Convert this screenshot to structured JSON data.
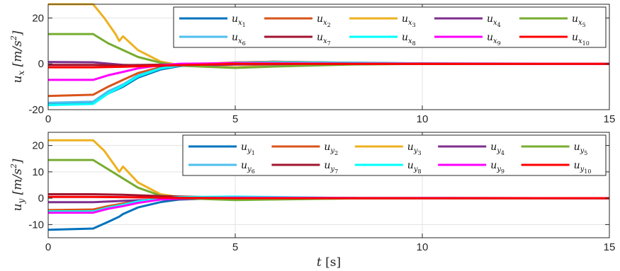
{
  "chart_data": [
    {
      "type": "line",
      "ylabel_var": "u",
      "ylabel_sub": "x",
      "ylabel_unit": "[m/s",
      "ylabel_unit_sup": "2",
      "ylabel_unit_end": "]",
      "xlim": [
        0,
        15
      ],
      "ylim": [
        -20,
        26
      ],
      "xticks": [
        0,
        5,
        10,
        15
      ],
      "yticks": [
        -20,
        0,
        20
      ],
      "grid": true,
      "legend_position": "top-right",
      "legend_columns": 5,
      "series": [
        {
          "name": "u",
          "sub": "x",
          "subsub": "1",
          "color": "#0072BD",
          "x": [
            0,
            1.2,
            1.6,
            2.0,
            2.4,
            3.0,
            3.5,
            5,
            6,
            8,
            10,
            15
          ],
          "y": [
            -17.5,
            -17,
            -13,
            -10,
            -6,
            -2.5,
            -1,
            0.6,
            0.9,
            0.5,
            0.2,
            0
          ]
        },
        {
          "name": "u",
          "sub": "x",
          "subsub": "2",
          "color": "#D95319",
          "x": [
            0,
            1.2,
            1.6,
            2.0,
            2.4,
            3.0,
            3.5,
            5,
            6,
            8,
            10,
            15
          ],
          "y": [
            -14,
            -13.5,
            -10,
            -7,
            -4,
            -1.5,
            -0.5,
            0.6,
            0.9,
            0.4,
            0.1,
            0
          ]
        },
        {
          "name": "u",
          "sub": "x",
          "subsub": "3",
          "color": "#EDB120",
          "x": [
            0,
            1.2,
            1.5,
            1.8,
            1.9,
            2.0,
            2.4,
            3.0,
            3.5,
            5,
            6,
            8,
            10,
            15
          ],
          "y": [
            26,
            26,
            20,
            13,
            10,
            12,
            6,
            1,
            -0.5,
            -1.5,
            -0.8,
            -0.2,
            0,
            0
          ]
        },
        {
          "name": "u",
          "sub": "x",
          "subsub": "4",
          "color": "#7E2F8E",
          "x": [
            0,
            1.2,
            2.0,
            3.0,
            5,
            8,
            15
          ],
          "y": [
            0.8,
            0.7,
            -0.5,
            -1,
            -0.3,
            0,
            0
          ]
        },
        {
          "name": "u",
          "sub": "x",
          "subsub": "5",
          "color": "#77AC30",
          "x": [
            0,
            1.2,
            1.6,
            2.0,
            2.4,
            3.0,
            3.5,
            5,
            6,
            8,
            10,
            15
          ],
          "y": [
            13,
            13,
            9,
            6,
            3,
            0.5,
            -0.8,
            -1.8,
            -1.2,
            -0.3,
            0,
            0
          ]
        },
        {
          "name": "u",
          "sub": "x",
          "subsub": "6",
          "color": "#4DBEEE",
          "x": [
            0,
            1.2,
            1.6,
            2.0,
            2.4,
            3.0,
            3.5,
            5,
            6,
            8,
            10,
            15
          ],
          "y": [
            -17,
            -16.5,
            -12,
            -9,
            -5,
            -2,
            -0.8,
            0.4,
            0.7,
            0.4,
            0.1,
            0
          ]
        },
        {
          "name": "u",
          "sub": "x",
          "subsub": "7",
          "color": "#A2142F",
          "x": [
            0,
            1.2,
            2.0,
            3.0,
            5,
            8,
            15
          ],
          "y": [
            -0.5,
            -0.5,
            -0.6,
            -0.4,
            0.1,
            0,
            0
          ]
        },
        {
          "name": "u",
          "sub": "x",
          "subsub": "8",
          "color": "#00FFFF",
          "x": [
            0,
            1.2,
            1.6,
            2.0,
            2.4,
            3.0,
            3.5,
            5,
            6,
            8,
            10,
            15
          ],
          "y": [
            -18,
            -17.5,
            -13,
            -9.5,
            -5.5,
            -2,
            -0.7,
            0.4,
            0.6,
            0.3,
            0.1,
            0
          ]
        },
        {
          "name": "u",
          "sub": "x",
          "subsub": "9",
          "color": "#FF00FF",
          "x": [
            0,
            1.2,
            1.6,
            2.0,
            2.4,
            3.0,
            3.5,
            5,
            8,
            15
          ],
          "y": [
            -7,
            -7,
            -5,
            -3.5,
            -2,
            -0.6,
            0,
            0.3,
            0.1,
            0
          ]
        },
        {
          "name": "u",
          "sub": "x",
          "subsub": "10",
          "color": "#FF0000",
          "x": [
            0,
            1.2,
            2.0,
            3.0,
            5,
            8,
            15
          ],
          "y": [
            -1.5,
            -1.5,
            -1.3,
            -0.8,
            0,
            0,
            0
          ]
        }
      ]
    },
    {
      "type": "line",
      "ylabel_var": "u",
      "ylabel_sub": "y",
      "ylabel_unit": "[m/s",
      "ylabel_unit_sup": "2",
      "ylabel_unit_end": "]",
      "xlabel_var": "t",
      "xlabel_unit": "[s]",
      "xlim": [
        0,
        15
      ],
      "ylim": [
        -15,
        25
      ],
      "xticks": [
        0,
        5,
        10,
        15
      ],
      "yticks": [
        -10,
        0,
        10,
        20
      ],
      "grid": true,
      "legend_position": "top-right",
      "legend_columns": 5,
      "series": [
        {
          "name": "u",
          "sub": "y",
          "subsub": "1",
          "color": "#0072BD",
          "x": [
            0,
            1.2,
            1.6,
            1.9,
            2.0,
            2.4,
            3.0,
            3.5,
            5,
            6,
            8,
            15
          ],
          "y": [
            -12,
            -11.5,
            -9,
            -7,
            -6,
            -3.5,
            -1.5,
            -0.5,
            0.2,
            0.2,
            0,
            0
          ]
        },
        {
          "name": "u",
          "sub": "y",
          "subsub": "2",
          "color": "#D95319",
          "x": [
            0,
            1.2,
            1.6,
            2.0,
            2.4,
            3.0,
            3.5,
            5,
            8,
            15
          ],
          "y": [
            -4.5,
            -4.3,
            -3,
            -2,
            -1,
            -0.2,
            0.2,
            0.3,
            0.1,
            0
          ]
        },
        {
          "name": "u",
          "sub": "y",
          "subsub": "3",
          "color": "#EDB120",
          "x": [
            0,
            1.2,
            1.5,
            1.8,
            1.9,
            2.0,
            2.4,
            3.0,
            3.5,
            5,
            6,
            8,
            10,
            15
          ],
          "y": [
            22,
            22,
            18,
            12,
            10,
            12,
            6,
            1.5,
            0.5,
            -0.3,
            -0.4,
            -0.1,
            0,
            0
          ]
        },
        {
          "name": "u",
          "sub": "y",
          "subsub": "4",
          "color": "#7E2F8E",
          "x": [
            0,
            1.2,
            2.0,
            3.0,
            5,
            8,
            15
          ],
          "y": [
            -1.5,
            -1.5,
            -1,
            -0.5,
            0,
            0,
            0
          ]
        },
        {
          "name": "u",
          "sub": "y",
          "subsub": "5",
          "color": "#77AC30",
          "x": [
            0,
            1.2,
            1.6,
            2.0,
            2.4,
            3.0,
            3.5,
            5,
            6,
            8,
            10,
            15
          ],
          "y": [
            14.5,
            14.5,
            11,
            7.5,
            4,
            1,
            0,
            -0.7,
            -0.5,
            -0.1,
            0,
            0
          ]
        },
        {
          "name": "u",
          "sub": "y",
          "subsub": "6",
          "color": "#4DBEEE",
          "x": [
            0,
            1.2,
            1.6,
            2.0,
            2.4,
            3.0,
            3.5,
            5,
            8,
            15
          ],
          "y": [
            -5.5,
            -5.3,
            -4,
            -2.8,
            -1.5,
            -0.3,
            0.3,
            0.5,
            0.1,
            0
          ]
        },
        {
          "name": "u",
          "sub": "y",
          "subsub": "7",
          "color": "#A2142F",
          "x": [
            0,
            1.2,
            2.0,
            3.0,
            5,
            8,
            15
          ],
          "y": [
            1.5,
            1.5,
            1.3,
            0.8,
            0.2,
            0,
            0
          ]
        },
        {
          "name": "u",
          "sub": "y",
          "subsub": "8",
          "color": "#00FFFF",
          "x": [
            0,
            1.2,
            1.6,
            2.0,
            2.4,
            3.0,
            3.5,
            5,
            8,
            15
          ],
          "y": [
            -5,
            -5,
            -3.6,
            -2.5,
            -1.2,
            -0.1,
            0.4,
            0.6,
            0.1,
            0
          ]
        },
        {
          "name": "u",
          "sub": "y",
          "subsub": "9",
          "color": "#FF00FF",
          "x": [
            0,
            1.2,
            1.6,
            2.0,
            2.4,
            3.0,
            3.5,
            5,
            8,
            15
          ],
          "y": [
            -5.5,
            -5.5,
            -4,
            -3,
            -1.8,
            -0.5,
            0,
            0.2,
            0.1,
            0
          ]
        },
        {
          "name": "u",
          "sub": "y",
          "subsub": "10",
          "color": "#FF0000",
          "x": [
            0,
            1.2,
            2.0,
            3.0,
            5,
            8,
            15
          ],
          "y": [
            0.5,
            0.5,
            0.4,
            0.2,
            0,
            0,
            0
          ]
        }
      ]
    }
  ]
}
